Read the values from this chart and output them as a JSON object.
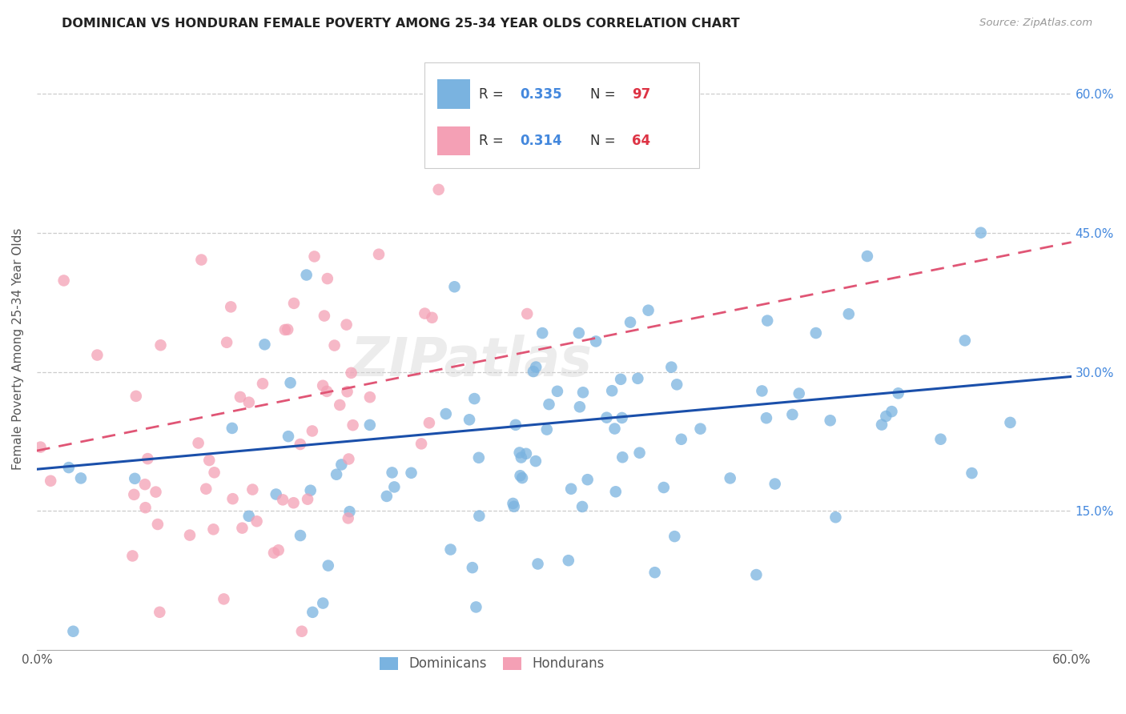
{
  "title": "DOMINICAN VS HONDURAN FEMALE POVERTY AMONG 25-34 YEAR OLDS CORRELATION CHART",
  "source": "Source: ZipAtlas.com",
  "ylabel": "Female Poverty Among 25-34 Year Olds",
  "xlim": [
    0.0,
    0.6
  ],
  "ylim": [
    0.0,
    0.65
  ],
  "xtick_positions": [
    0.0,
    0.1,
    0.2,
    0.3,
    0.4,
    0.5,
    0.6
  ],
  "xticklabels": [
    "0.0%",
    "",
    "",
    "",
    "",
    "",
    "60.0%"
  ],
  "ytick_right_labels": [
    "60.0%",
    "45.0%",
    "30.0%",
    "15.0%"
  ],
  "ytick_right_values": [
    0.6,
    0.45,
    0.3,
    0.15
  ],
  "dominican_color": "#7ab3e0",
  "honduran_color": "#f4a0b5",
  "dominican_line_color": "#1a4faa",
  "honduran_line_color": "#e05575",
  "dominican_R": 0.335,
  "dominican_N": 97,
  "honduran_R": 0.314,
  "honduran_N": 64,
  "legend_labels": [
    "Dominicans",
    "Hondurans"
  ],
  "background_color": "#ffffff",
  "grid_color": "#cccccc",
  "title_color": "#222222",
  "watermark": "ZIPatlas",
  "watermark_color": "#d0d0d0",
  "legend_R_color": "#4488dd",
  "legend_N_color": "#dd3344",
  "legend_text_color": "#333333"
}
